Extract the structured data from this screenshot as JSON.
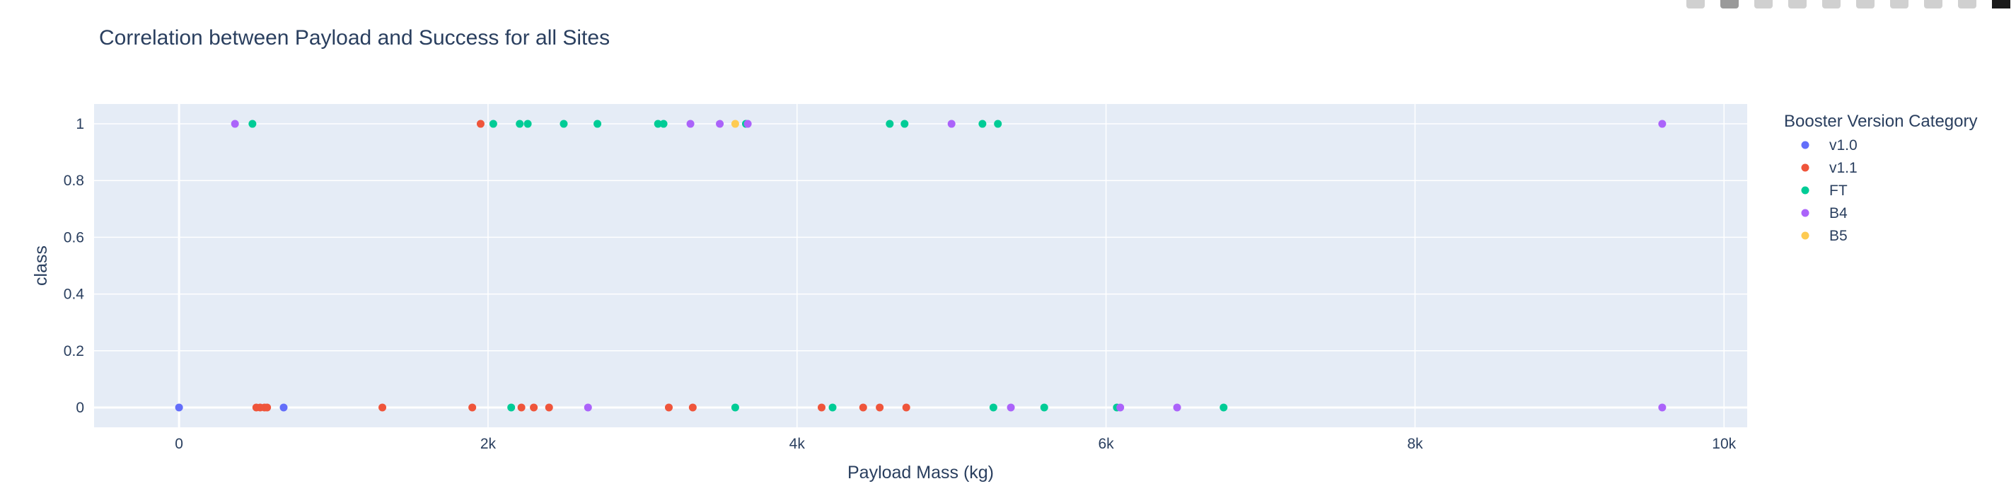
{
  "chart_data": {
    "type": "scatter",
    "title": "Correlation between Payload and Success for all Sites",
    "xlabel": "Payload Mass (kg)",
    "ylabel": "class",
    "xlim": [
      -550,
      10150
    ],
    "ylim": [
      -0.07,
      1.07
    ],
    "x_ticks": [
      0,
      2000,
      4000,
      6000,
      8000,
      10000
    ],
    "x_tick_labels": [
      "0",
      "2k",
      "4k",
      "6k",
      "8k",
      "10k"
    ],
    "y_ticks": [
      0,
      0.2,
      0.4,
      0.6,
      0.8,
      1
    ],
    "y_tick_labels": [
      "0",
      "0.2",
      "0.4",
      "0.6",
      "0.8",
      "1"
    ],
    "grid": true,
    "legend_title": "Booster Version Category",
    "legend_placement": "right",
    "series": [
      {
        "name": "v1.0",
        "color": "#636efa",
        "x": [
          0,
          677
        ],
        "y": [
          0,
          0
        ]
      },
      {
        "name": "v1.1",
        "color": "#ef553b",
        "x": [
          1952,
          500,
          525,
          553,
          570,
          1316,
          1898,
          2216,
          2296,
          2395,
          3170,
          3325,
          4159,
          4428,
          4535,
          4707
        ],
        "y": [
          1,
          0,
          0,
          0,
          0,
          0,
          0,
          0,
          0,
          0,
          0,
          0,
          0,
          0,
          0,
          0
        ]
      },
      {
        "name": "FT",
        "color": "#00cc96",
        "x": [
          475,
          2034,
          2205,
          2257,
          2490,
          2708,
          3100,
          3136,
          3669,
          4600,
          4696,
          5200,
          5300,
          2150,
          3600,
          4230,
          5271,
          5600,
          6070,
          6761
        ],
        "y": [
          1,
          1,
          1,
          1,
          1,
          1,
          1,
          1,
          1,
          1,
          1,
          1,
          1,
          0,
          0,
          0,
          0,
          0,
          0,
          0
        ]
      },
      {
        "name": "B4",
        "color": "#ab63fa",
        "x": [
          362,
          3310,
          3500,
          3681,
          5000,
          9600,
          2647,
          5384,
          6092,
          6460,
          9600
        ],
        "y": [
          1,
          1,
          1,
          1,
          1,
          1,
          0,
          0,
          0,
          0,
          0
        ]
      },
      {
        "name": "B5",
        "color": "#fecb52",
        "x": [
          3600
        ],
        "y": [
          1
        ]
      }
    ]
  },
  "colors": {
    "plot_bg": "#e5ecf6",
    "grid": "#ffffff",
    "text": "#2a3f5f"
  },
  "modebar": {
    "buttons": [
      "camera-icon",
      "zoom-icon",
      "pan-icon",
      "box-select-icon",
      "lasso-icon",
      "zoom-in-icon",
      "zoom-out-icon",
      "autoscale-icon",
      "reset-axes-icon",
      "plotly-logo-icon"
    ]
  }
}
